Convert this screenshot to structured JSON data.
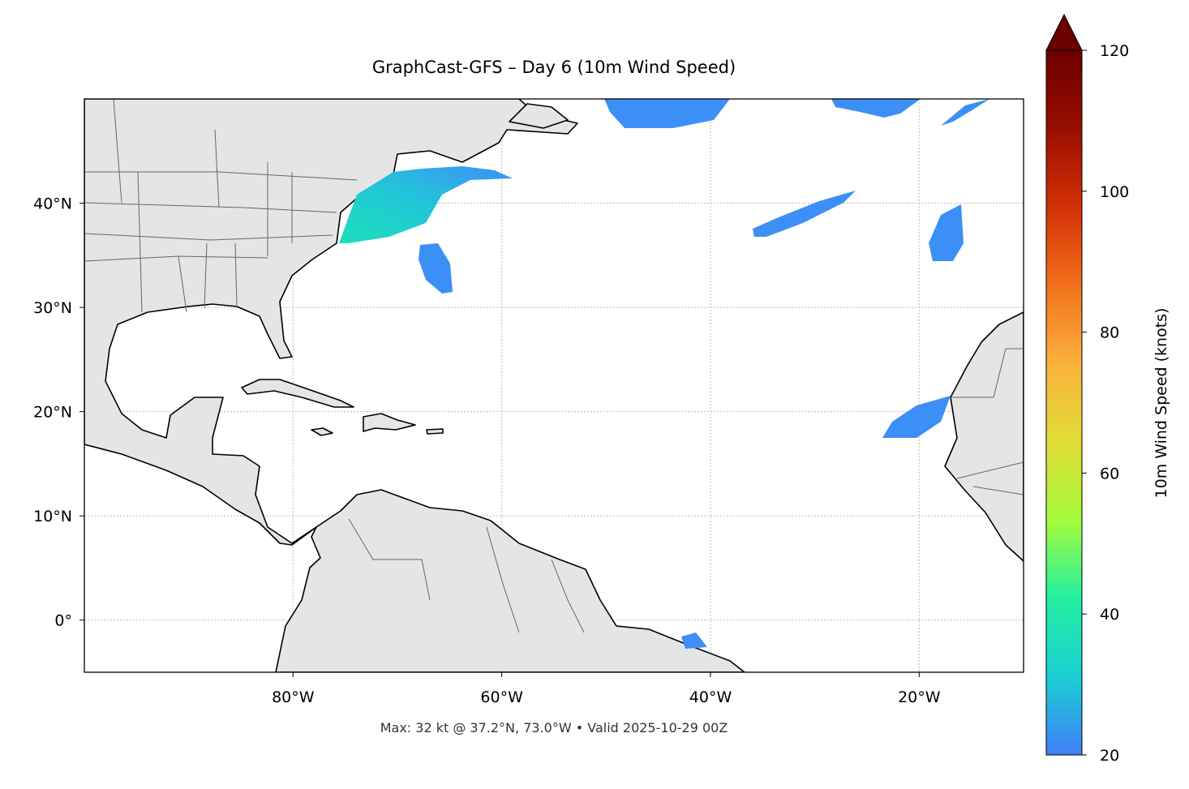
{
  "title": "GraphCast-GFS – Day 6 (10m Wind Speed)",
  "map": {
    "lonlim": [
      -100,
      -10
    ],
    "latlim": [
      -5,
      50
    ],
    "grid": true,
    "lonticks": [
      {
        "value": -80,
        "label": "80°W"
      },
      {
        "value": -60,
        "label": "60°W"
      },
      {
        "value": -40,
        "label": "40°W"
      },
      {
        "value": -20,
        "label": "20°W"
      }
    ],
    "latticks": [
      {
        "value": 0,
        "label": "0°"
      },
      {
        "value": 10,
        "label": "10°N"
      },
      {
        "value": 20,
        "label": "20°N"
      },
      {
        "value": 30,
        "label": "30°N"
      },
      {
        "value": 40,
        "label": "40°N"
      }
    ]
  },
  "colorbar": {
    "label": "10m Wind Speed (knots)",
    "lim": [
      20,
      120
    ],
    "ticks": [
      20,
      40,
      60,
      80,
      100,
      120
    ],
    "extend": "max",
    "colors": [
      "#3f7ff8",
      "#1bcfd4",
      "#22f0a0",
      "#a4fc3c",
      "#e1dd37",
      "#fbb13b",
      "#f2701d",
      "#d23105",
      "#9a0e01",
      "#6a0000"
    ]
  },
  "footer": "Max: 32 kt @ 37.2°N, 73.0°W • Valid 2025-10-29 00Z"
}
